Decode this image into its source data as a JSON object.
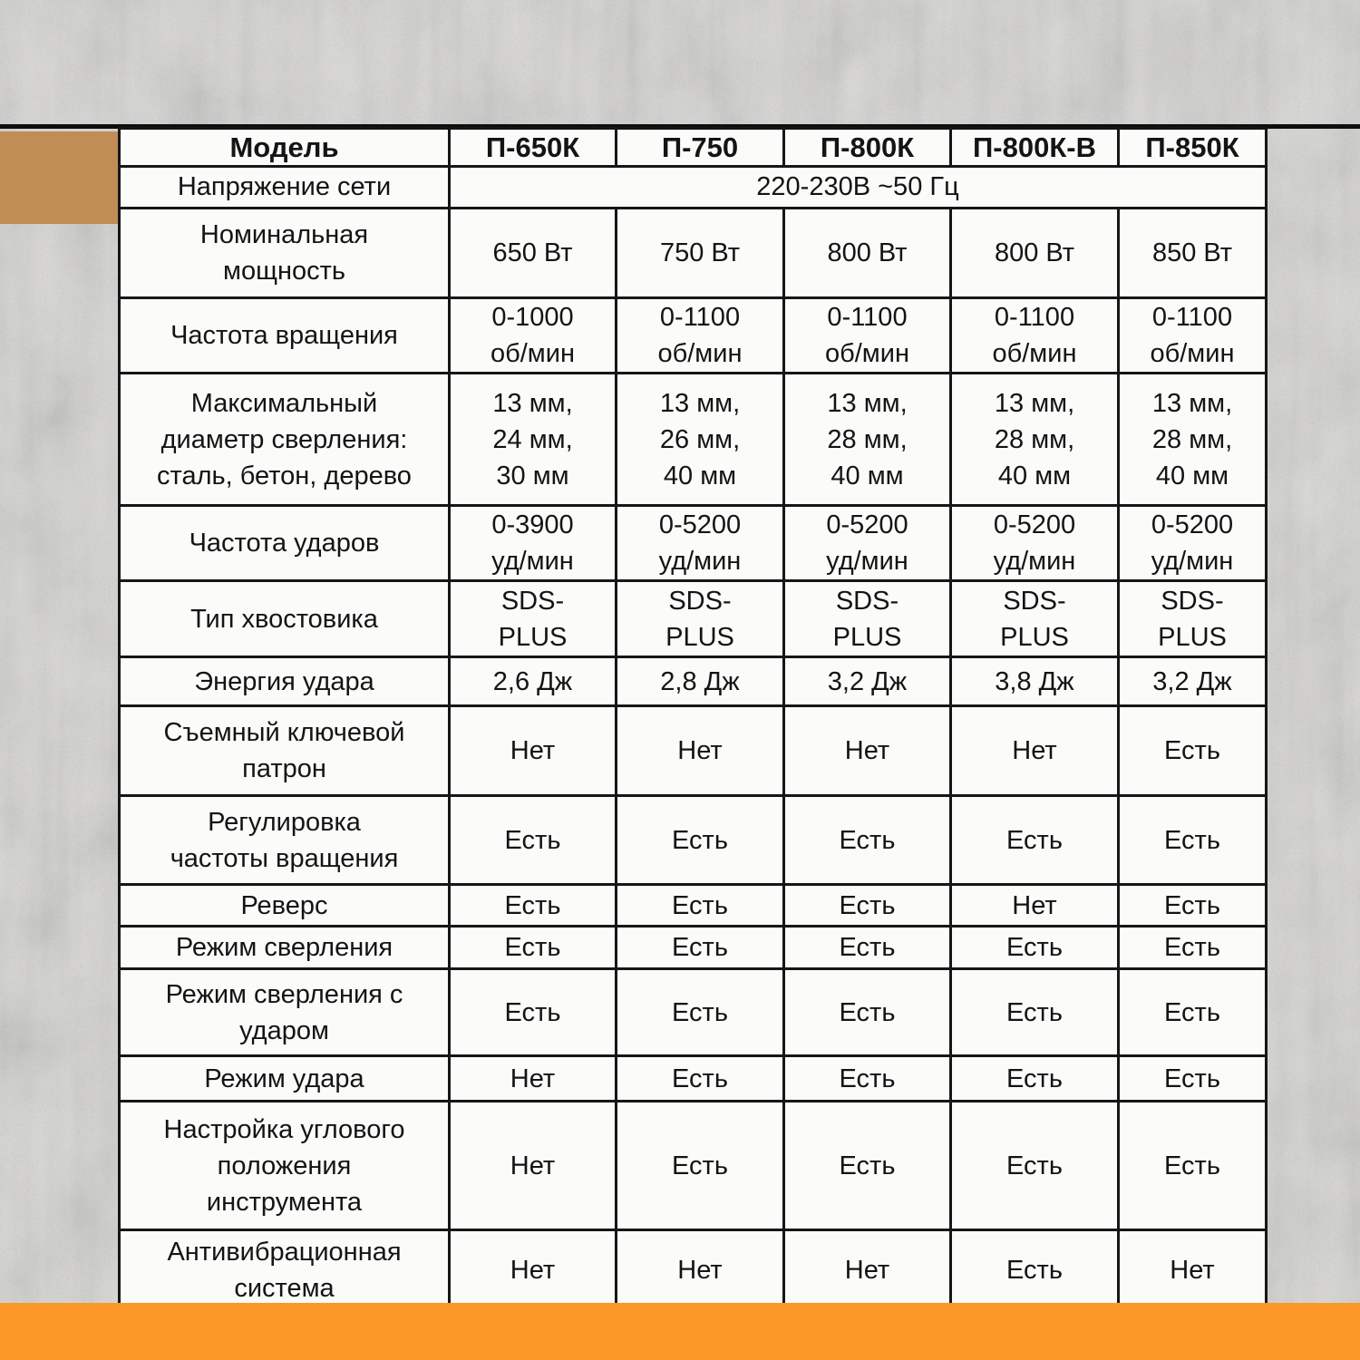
{
  "colors": {
    "footer_orange": "#fb9828",
    "accent_tan": "#c08d55",
    "table_background": "#fbfbf9",
    "table_border": "#161616",
    "page_grey": "#cfcecd"
  },
  "table": {
    "header": {
      "label": "Модель",
      "models": [
        "П-650К",
        "П-750",
        "П-800К",
        "П-800К-В",
        "П-850К"
      ]
    },
    "rows": [
      {
        "label": "Напряжение сети",
        "merged_value": "220-230В ~50 Гц"
      },
      {
        "label": "Номинальная\nмощность",
        "values": [
          "650 Вт",
          "750 Вт",
          "800 Вт",
          "800 Вт",
          "850 Вт"
        ],
        "top_cells": [
          1
        ]
      },
      {
        "label": "Частота вращения",
        "values": [
          "0-1000\nоб/мин",
          "0-1100\nоб/мин",
          "0-1100\nоб/мин",
          "0-1100\nоб/мин",
          "0-1100\nоб/мин"
        ]
      },
      {
        "label": "Максимальный\nдиаметр сверления:\nсталь, бетон, дерево",
        "values": [
          "13 мм,\n24 мм,\n30 мм",
          "13 мм,\n26 мм,\n40 мм",
          "13 мм,\n28 мм,\n40 мм",
          "13 мм,\n28 мм,\n40 мм",
          "13 мм,\n28 мм,\n40 мм"
        ]
      },
      {
        "label": "Частота ударов",
        "values": [
          "0-3900\nуд/мин",
          "0-5200\nуд/мин",
          "0-5200\nуд/мин",
          "0-5200\nуд/мин",
          "0-5200\nуд/мин"
        ]
      },
      {
        "label": "Тип хвостовика",
        "values": [
          "SDS-\nPLUS",
          "SDS-\nPLUS",
          "SDS-\nPLUS",
          "SDS-\nPLUS",
          "SDS-\nPLUS"
        ]
      },
      {
        "label": "Энергия удара",
        "values": [
          "2,6 Дж",
          "2,8 Дж",
          "3,2 Дж",
          "3,8 Дж",
          "3,2 Дж"
        ]
      },
      {
        "label": "Съемный ключевой\nпатрон",
        "values": [
          "Нет",
          "Нет",
          "Нет",
          "Нет",
          "Есть"
        ]
      },
      {
        "label": "Регулировка\nчастоты вращения",
        "values": [
          "Есть",
          "Есть",
          "Есть",
          "Есть",
          "Есть"
        ]
      },
      {
        "label": "Реверс",
        "values": [
          "Есть",
          "Есть",
          "Есть",
          "Нет",
          "Есть"
        ]
      },
      {
        "label": "Режим сверления",
        "values": [
          "Есть",
          "Есть",
          "Есть",
          "Есть",
          "Есть"
        ]
      },
      {
        "label": "Режим сверления с\nударом",
        "values": [
          "Есть",
          "Есть",
          "Есть",
          "Есть",
          "Есть"
        ]
      },
      {
        "label": "Режим удара",
        "values": [
          "Нет",
          "Есть",
          "Есть",
          "Есть",
          "Есть"
        ]
      },
      {
        "label": "Настройка углового\nположения\nинструмента",
        "values": [
          "Нет",
          "Есть",
          "Есть",
          "Есть",
          "Есть"
        ]
      },
      {
        "label": "Антивибрационная\nсистема",
        "values": [
          "Нет",
          "Нет",
          "Нет",
          "Есть",
          "Нет"
        ]
      }
    ]
  }
}
